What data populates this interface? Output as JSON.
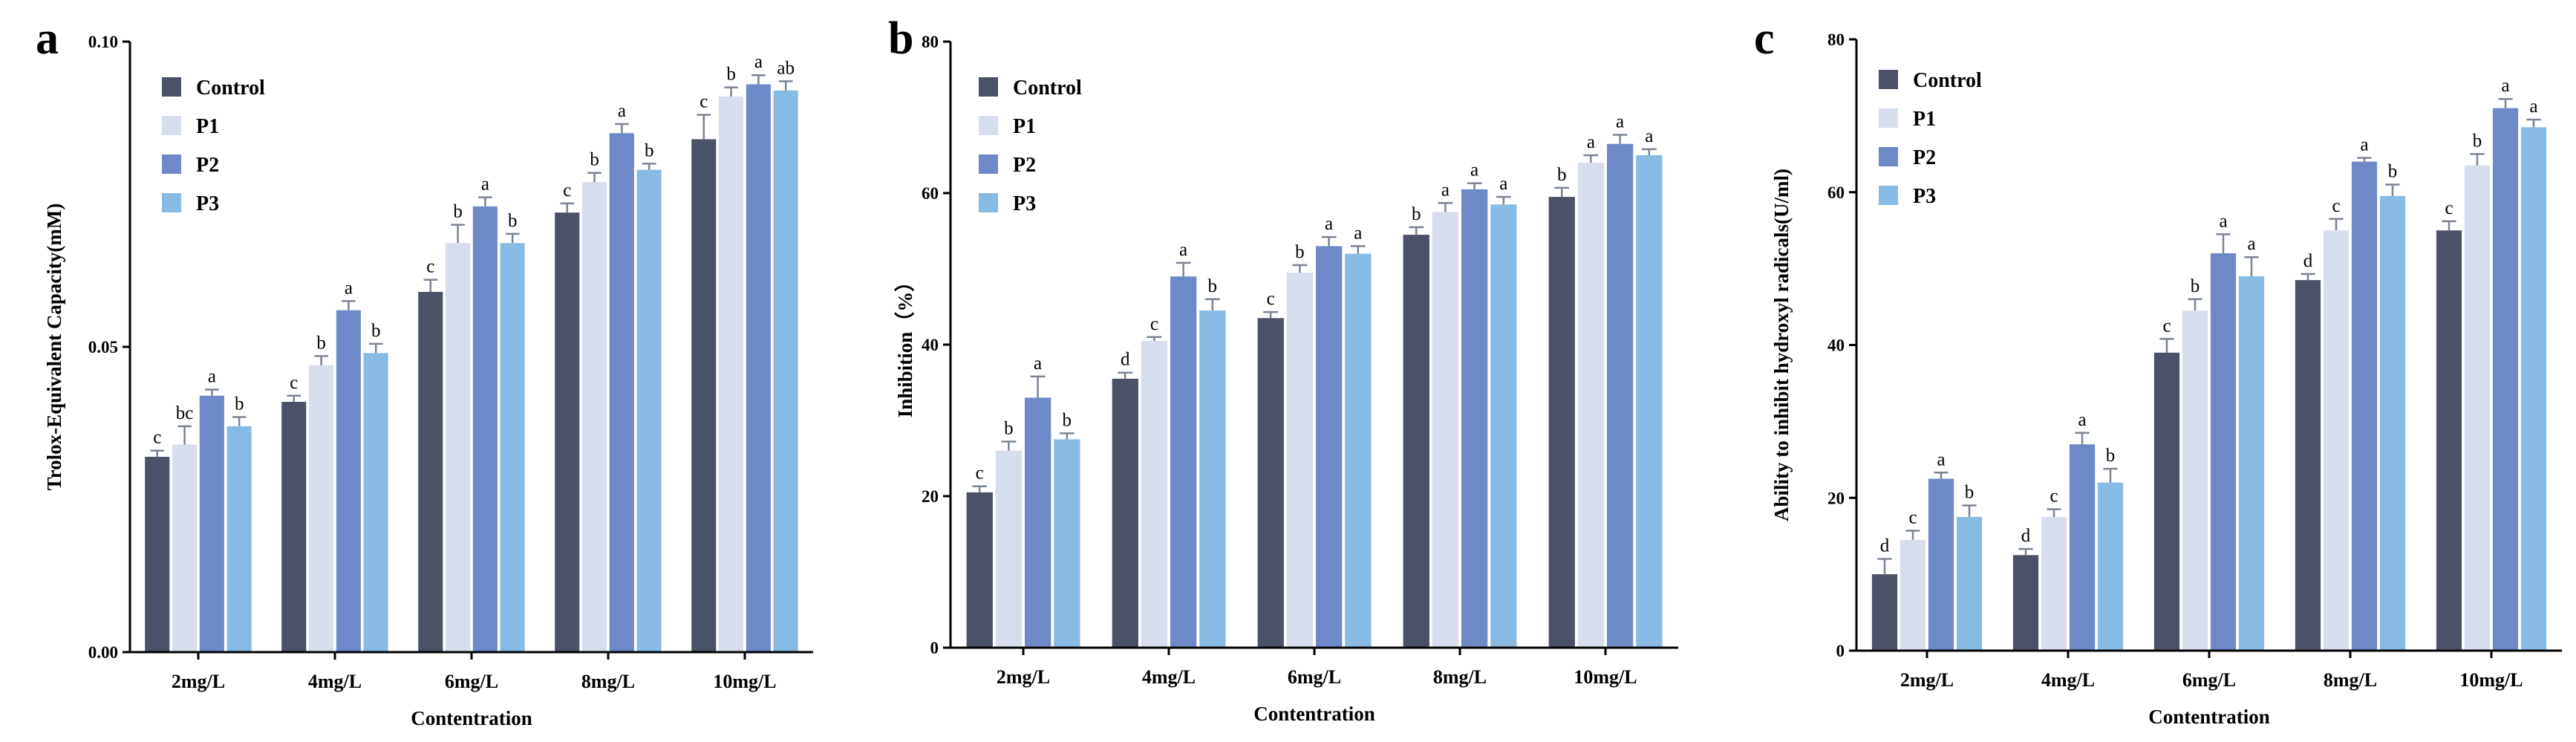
{
  "colors": {
    "Control": "#4b5166",
    "P1": "#d6ddec",
    "P2": "#6d89c8",
    "P3": "#88bbe4"
  },
  "chart_data": [
    {
      "panel": "a",
      "type": "bar",
      "ylabel": "Trolox-Equivalent Capacity(mM)",
      "xlabel": "Contentration",
      "ylim": [
        0,
        0.1
      ],
      "yticks": [
        0,
        0.05,
        0.1
      ],
      "ytick_labels": [
        "0.00",
        "0.05",
        "0.10"
      ],
      "categories": [
        "2mg/L",
        "4mg/L",
        "6mg/L",
        "8mg/L",
        "10mg/L"
      ],
      "legend": [
        "Control",
        "P1",
        "P2",
        "P3"
      ],
      "series": [
        {
          "name": "Control",
          "values": [
            0.032,
            0.041,
            0.059,
            0.072,
            0.084
          ],
          "errors": [
            0.001,
            0.001,
            0.002,
            0.0015,
            0.004
          ],
          "sig": [
            "c",
            "c",
            "c",
            "c",
            "c"
          ]
        },
        {
          "name": "P1",
          "values": [
            0.034,
            0.047,
            0.067,
            0.077,
            0.091
          ],
          "errors": [
            0.003,
            0.0015,
            0.003,
            0.0015,
            0.0015
          ],
          "sig": [
            "bc",
            "b",
            "b",
            "b",
            "b"
          ]
        },
        {
          "name": "P2",
          "values": [
            0.042,
            0.056,
            0.073,
            0.085,
            0.093
          ],
          "errors": [
            0.001,
            0.0015,
            0.0015,
            0.0015,
            0.0015
          ],
          "sig": [
            "a",
            "a",
            "a",
            "a",
            "a"
          ]
        },
        {
          "name": "P3",
          "values": [
            0.037,
            0.049,
            0.067,
            0.079,
            0.092
          ],
          "errors": [
            0.0015,
            0.0015,
            0.0015,
            0.001,
            0.0015
          ],
          "sig": [
            "b",
            "b",
            "b",
            "b",
            "ab"
          ]
        }
      ]
    },
    {
      "panel": "b",
      "type": "bar",
      "ylabel": "Inhibition（%）",
      "xlabel": "Contentration",
      "ylim": [
        0,
        80
      ],
      "yticks": [
        0,
        20,
        40,
        60,
        80
      ],
      "ytick_labels": [
        "0",
        "20",
        "40",
        "60",
        "80"
      ],
      "categories": [
        "2mg/L",
        "4mg/L",
        "6mg/L",
        "8mg/L",
        "10mg/L"
      ],
      "legend": [
        "Control",
        "P1",
        "P2",
        "P3"
      ],
      "series": [
        {
          "name": "Control",
          "values": [
            20.5,
            35.5,
            43.5,
            54.5,
            59.5
          ],
          "errors": [
            0.8,
            0.8,
            0.8,
            1.0,
            1.2
          ],
          "sig": [
            "c",
            "d",
            "c",
            "b",
            "b"
          ]
        },
        {
          "name": "P1",
          "values": [
            26,
            40.5,
            49.5,
            57.5,
            64
          ],
          "errors": [
            1.2,
            0.5,
            1.0,
            1.2,
            1.0
          ],
          "sig": [
            "b",
            "c",
            "b",
            "a",
            "a"
          ]
        },
        {
          "name": "P2",
          "values": [
            33,
            49,
            53,
            60.5,
            66.5
          ],
          "errors": [
            2.8,
            1.8,
            1.2,
            0.8,
            1.2
          ],
          "sig": [
            "a",
            "a",
            "a",
            "a",
            "a"
          ]
        },
        {
          "name": "P3",
          "values": [
            27.5,
            44.5,
            52,
            58.5,
            65
          ],
          "errors": [
            0.8,
            1.5,
            1.0,
            1.0,
            0.8
          ],
          "sig": [
            "b",
            "b",
            "a",
            "a",
            "a"
          ]
        }
      ]
    },
    {
      "panel": "c",
      "type": "bar",
      "ylabel": "Ability to inhibit hydroxyl radicals(U/ml)",
      "xlabel": "Contentration",
      "ylim": [
        0,
        80
      ],
      "yticks": [
        0,
        20,
        40,
        60,
        80
      ],
      "ytick_labels": [
        "0",
        "20",
        "40",
        "60",
        "80"
      ],
      "categories": [
        "2mg/L",
        "4mg/L",
        "6mg/L",
        "8mg/L",
        "10mg/L"
      ],
      "legend": [
        "Control",
        "P1",
        "P2",
        "P3"
      ],
      "series": [
        {
          "name": "Control",
          "values": [
            10,
            12.5,
            39,
            48.5,
            55
          ],
          "errors": [
            2.0,
            0.8,
            1.8,
            0.8,
            1.2
          ],
          "sig": [
            "d",
            "d",
            "c",
            "d",
            "c"
          ]
        },
        {
          "name": "P1",
          "values": [
            14.5,
            17.5,
            44.5,
            55,
            63.5
          ],
          "errors": [
            1.2,
            1.0,
            1.5,
            1.5,
            1.5
          ],
          "sig": [
            "c",
            "c",
            "b",
            "c",
            "b"
          ]
        },
        {
          "name": "P2",
          "values": [
            22.5,
            27,
            52,
            64,
            71
          ],
          "errors": [
            0.8,
            1.5,
            2.5,
            0.5,
            1.2
          ],
          "sig": [
            "a",
            "a",
            "a",
            "a",
            "a"
          ]
        },
        {
          "name": "P3",
          "values": [
            17.5,
            22,
            49,
            59.5,
            68.5
          ],
          "errors": [
            1.5,
            1.8,
            2.5,
            1.5,
            1.0
          ],
          "sig": [
            "b",
            "b",
            "a",
            "b",
            "a"
          ]
        }
      ]
    }
  ]
}
